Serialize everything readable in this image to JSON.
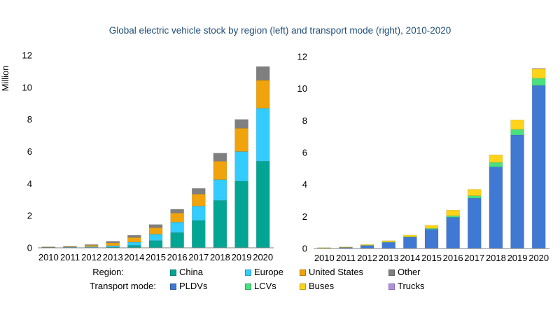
{
  "title": "Global electric vehicle stock by region (left) and transport mode (right), 2010-2020",
  "chart_data": [
    {
      "type": "bar",
      "stacked": true,
      "panel": "left",
      "ylabel": "Million",
      "ylim": [
        0,
        12
      ],
      "yticks": [
        0,
        2,
        4,
        6,
        8,
        10,
        12
      ],
      "grid": false,
      "categories": [
        "2010",
        "2011",
        "2012",
        "2013",
        "2014",
        "2015",
        "2016",
        "2017",
        "2018",
        "2019",
        "2020"
      ],
      "series": [
        {
          "name": "China",
          "color": "#00a693",
          "values": [
            0.01,
            0.02,
            0.03,
            0.05,
            0.15,
            0.45,
            0.95,
            1.7,
            2.95,
            4.15,
            5.4
          ]
        },
        {
          "name": "Europe",
          "color": "#33ccff",
          "values": [
            0.01,
            0.02,
            0.04,
            0.08,
            0.2,
            0.4,
            0.65,
            0.9,
            1.3,
            1.85,
            3.3
          ]
        },
        {
          "name": "United States",
          "color": "#f0a30a",
          "values": [
            0.01,
            0.03,
            0.09,
            0.18,
            0.29,
            0.4,
            0.57,
            0.75,
            1.15,
            1.45,
            1.75
          ]
        },
        {
          "name": "Other",
          "color": "#7f7f7f",
          "values": [
            0.01,
            0.02,
            0.04,
            0.1,
            0.14,
            0.2,
            0.23,
            0.35,
            0.5,
            0.55,
            0.85
          ]
        }
      ]
    },
    {
      "type": "bar",
      "stacked": true,
      "panel": "right",
      "ylim": [
        0,
        12
      ],
      "yticks": [
        0,
        2,
        4,
        6,
        8,
        10,
        12
      ],
      "grid": false,
      "categories": [
        "2010",
        "2011",
        "2012",
        "2013",
        "2014",
        "2015",
        "2016",
        "2017",
        "2018",
        "2019",
        "2020"
      ],
      "series": [
        {
          "name": "PLDVs",
          "color": "#3f79d4",
          "values": [
            0.02,
            0.06,
            0.18,
            0.38,
            0.7,
            1.2,
            1.95,
            3.15,
            5.1,
            7.1,
            10.2
          ]
        },
        {
          "name": "LCVs",
          "color": "#49e07f",
          "values": [
            0.005,
            0.01,
            0.02,
            0.03,
            0.04,
            0.06,
            0.1,
            0.15,
            0.28,
            0.35,
            0.45
          ]
        },
        {
          "name": "Buses",
          "color": "#ffd31a",
          "values": [
            0.005,
            0.02,
            0.05,
            0.08,
            0.1,
            0.2,
            0.35,
            0.4,
            0.48,
            0.6,
            0.6
          ]
        },
        {
          "name": "Trucks",
          "color": "#b18fe0",
          "values": [
            0,
            0,
            0,
            0,
            0,
            0,
            0,
            0,
            0,
            0,
            0.01
          ]
        }
      ]
    }
  ],
  "legend": {
    "region_label": "Region:",
    "transport_label": "Transport mode:",
    "region_items": [
      {
        "name": "China",
        "color": "#00a693"
      },
      {
        "name": "Europe",
        "color": "#33ccff"
      },
      {
        "name": "United States",
        "color": "#f0a30a"
      },
      {
        "name": "Other",
        "color": "#7f7f7f"
      }
    ],
    "transport_items": [
      {
        "name": "PLDVs",
        "color": "#3f79d4"
      },
      {
        "name": "LCVs",
        "color": "#49e07f"
      },
      {
        "name": "Buses",
        "color": "#ffd31a"
      },
      {
        "name": "Trucks",
        "color": "#b18fe0"
      }
    ]
  }
}
